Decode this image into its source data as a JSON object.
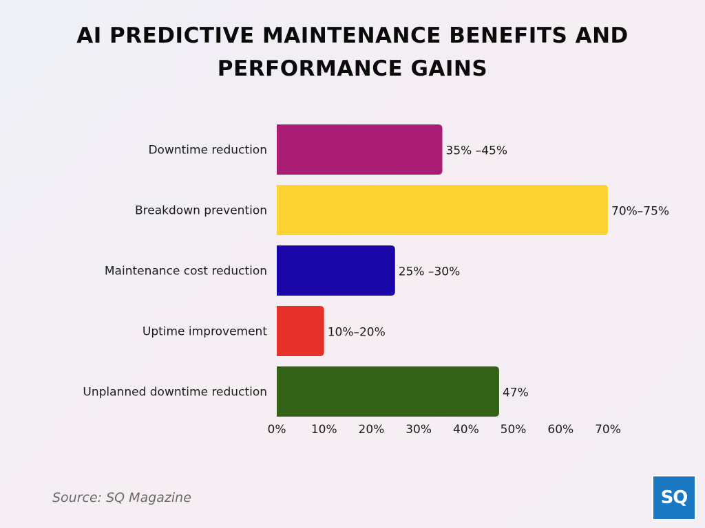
{
  "title_lines": [
    "AI PREDICTIVE MAINTENANCE BENEFITS AND",
    "PERFORMANCE GAINS"
  ],
  "source": "Source: SQ Magazine",
  "logo_text": "SQ",
  "chart_data": {
    "type": "bar",
    "orientation": "horizontal",
    "categories": [
      "Downtime reduction",
      "Breakdown prevention",
      "Maintenance cost reduction",
      "Uptime improvement",
      "Unplanned downtime reduction"
    ],
    "values": [
      35,
      70,
      25,
      10,
      47
    ],
    "value_labels": [
      "35% –45%",
      "70%–75%",
      "25% –30%",
      "10%–20%",
      "47%"
    ],
    "colors": [
      "#a91e74",
      "#fdd334",
      "#1905a8",
      "#e8302a",
      "#336216"
    ],
    "xticks": [
      "0%",
      "10%",
      "20%",
      "30%",
      "40%",
      "50%",
      "60%",
      "70%"
    ],
    "xlim": [
      0,
      70
    ],
    "title": "AI PREDICTIVE MAINTENANCE BENEFITS AND PERFORMANCE GAINS",
    "grid": false,
    "legend": "none"
  }
}
